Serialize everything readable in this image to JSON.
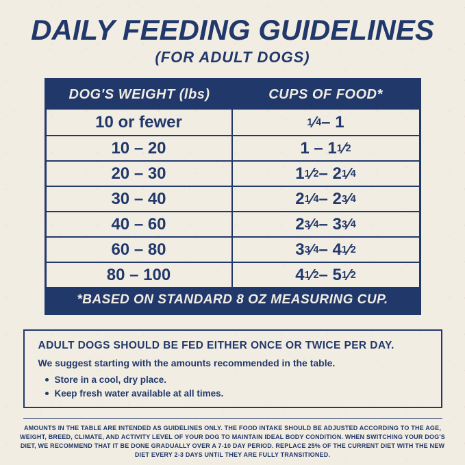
{
  "colors": {
    "navy": "#21386b",
    "cream": "#f2ede3"
  },
  "header": {
    "title": "DAILY FEEDING GUIDELINES",
    "subtitle": "(FOR ADULT DOGS)"
  },
  "table": {
    "col_headers": [
      "DOG'S WEIGHT (lbs)",
      "CUPS OF FOOD*"
    ],
    "rows": [
      {
        "weight": "10 or fewer",
        "cups": "1/4 – 1"
      },
      {
        "weight": "10 – 20",
        "cups": "1 – 1 1/2"
      },
      {
        "weight": "20 – 30",
        "cups": "1 1/2 – 2 1/4"
      },
      {
        "weight": "30 – 40",
        "cups": "2 1/4 – 2 3/4"
      },
      {
        "weight": "40 – 60",
        "cups": "2 3/4 – 3 3/4"
      },
      {
        "weight": "60 – 80",
        "cups": "3 3/4 – 4 1/2"
      },
      {
        "weight": "80 – 100",
        "cups": "4 1/2 – 5 1/2"
      }
    ],
    "footnote": "*BASED ON STANDARD 8 OZ MEASURING CUP."
  },
  "info_box": {
    "heading": "ADULT DOGS SHOULD BE FED EITHER ONCE OR TWICE PER DAY.",
    "subheading": "We suggest starting with the amounts recommended in the table.",
    "bullets": [
      "Store in a cool, dry place.",
      "Keep fresh water available at all times."
    ]
  },
  "fine_print": "AMOUNTS IN THE TABLE ARE INTENDED AS GUIDELINES ONLY. THE FOOD INTAKE SHOULD BE ADJUSTED ACCORDING TO THE AGE, WEIGHT, BREED, CLIMATE, AND ACTIVITY LEVEL OF YOUR DOG TO MAINTAIN IDEAL BODY CONDITION. WHEN SWITCHING YOUR DOG'S DIET, WE RECOMMEND THAT IT BE DONE GRADUALLY OVER A 7-10 DAY PERIOD. REPLACE 25% OF THE CURRENT DIET WITH THE NEW DIET EVERY 2-3 DAYS UNTIL THEY ARE FULLY TRANSITIONED."
}
